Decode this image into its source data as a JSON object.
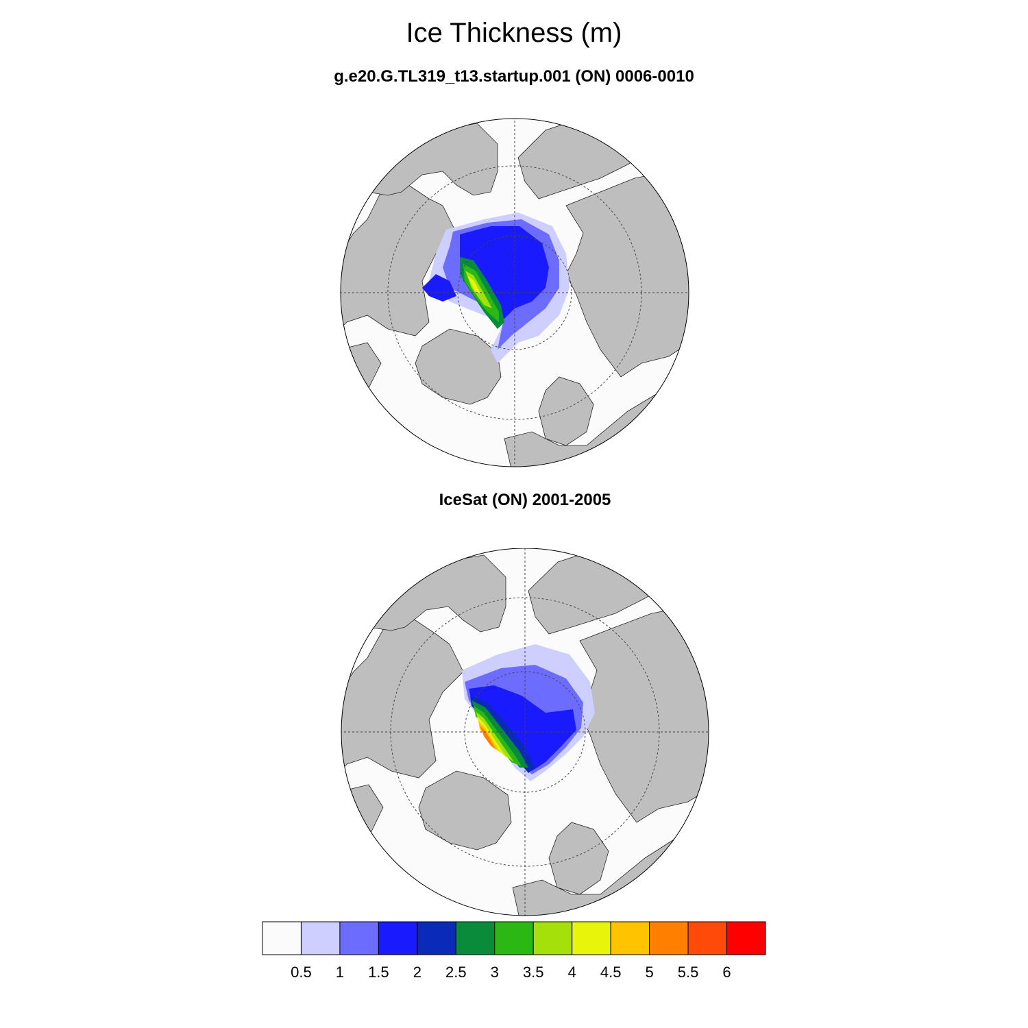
{
  "title": "Ice Thickness (m)",
  "panels": [
    {
      "subtitle": "g.e20.G.TL319_t13.startup.001 (ON) 0006-0010"
    },
    {
      "subtitle": "IceSat (ON) 2001-2005"
    }
  ],
  "colorbar": {
    "labels": [
      "0.5",
      "1",
      "1.5",
      "2",
      "2.5",
      "3",
      "3.5",
      "4",
      "4.5",
      "5",
      "5.5",
      "6"
    ],
    "colors": [
      "#fbfbfb",
      "#cccfff",
      "#6c6cff",
      "#1a1aff",
      "#0a2ab8",
      "#098b3c",
      "#2bb814",
      "#a6e00a",
      "#e6f50a",
      "#ffc300",
      "#ff7f00",
      "#ff4a0a",
      "#ff0000"
    ]
  },
  "map_colors": {
    "land": "#bebebe",
    "ocean": "#fbfbfb"
  }
}
